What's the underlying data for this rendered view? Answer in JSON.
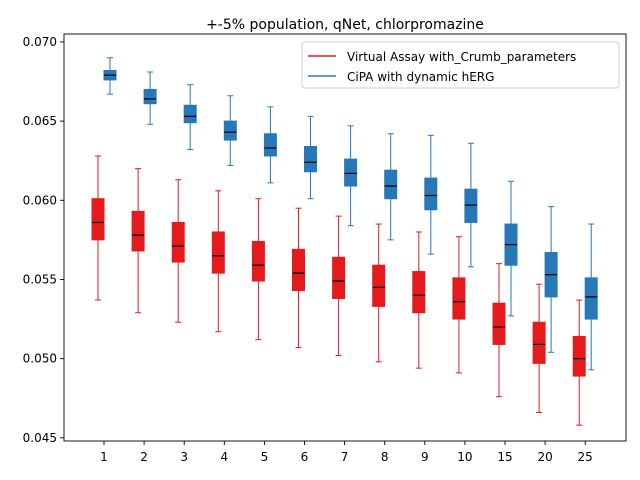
{
  "chart_data": {
    "type": "box",
    "title": "+-5% population, qNet, chlorpromazine",
    "xlabel": "",
    "ylabel": "",
    "categories": [
      "1",
      "2",
      "3",
      "4",
      "5",
      "6",
      "7",
      "8",
      "9",
      "10",
      "15",
      "20",
      "25"
    ],
    "ylim": [
      0.0448,
      0.0705
    ],
    "yticks": [
      0.045,
      0.05,
      0.055,
      0.06,
      0.065,
      0.07
    ],
    "ytick_labels": [
      "0.045",
      "0.050",
      "0.055",
      "0.060",
      "0.065",
      "0.070"
    ],
    "grid": false,
    "legend_position": "top-right",
    "series": [
      {
        "name": "Virtual Assay with_Crumb_parameters",
        "color": "#e41a1c",
        "boxes": [
          {
            "whislo": 0.0537,
            "q1": 0.0575,
            "med": 0.0586,
            "q3": 0.0601,
            "whishi": 0.0628
          },
          {
            "whislo": 0.0529,
            "q1": 0.0568,
            "med": 0.0578,
            "q3": 0.0593,
            "whishi": 0.062
          },
          {
            "whislo": 0.0523,
            "q1": 0.0561,
            "med": 0.0571,
            "q3": 0.0586,
            "whishi": 0.0613
          },
          {
            "whislo": 0.0517,
            "q1": 0.0554,
            "med": 0.0565,
            "q3": 0.058,
            "whishi": 0.0606
          },
          {
            "whislo": 0.0512,
            "q1": 0.0549,
            "med": 0.0559,
            "q3": 0.0574,
            "whishi": 0.0601
          },
          {
            "whislo": 0.0507,
            "q1": 0.0543,
            "med": 0.0554,
            "q3": 0.0569,
            "whishi": 0.0595
          },
          {
            "whislo": 0.0502,
            "q1": 0.0538,
            "med": 0.0549,
            "q3": 0.0564,
            "whishi": 0.059
          },
          {
            "whislo": 0.0498,
            "q1": 0.0533,
            "med": 0.0545,
            "q3": 0.0559,
            "whishi": 0.0585
          },
          {
            "whislo": 0.0494,
            "q1": 0.0529,
            "med": 0.054,
            "q3": 0.0555,
            "whishi": 0.058
          },
          {
            "whislo": 0.0491,
            "q1": 0.0525,
            "med": 0.0536,
            "q3": 0.0551,
            "whishi": 0.0577
          },
          {
            "whislo": 0.0476,
            "q1": 0.0509,
            "med": 0.052,
            "q3": 0.0535,
            "whishi": 0.056
          },
          {
            "whislo": 0.0466,
            "q1": 0.0497,
            "med": 0.0509,
            "q3": 0.0523,
            "whishi": 0.0547
          },
          {
            "whislo": 0.0458,
            "q1": 0.0489,
            "med": 0.05,
            "q3": 0.0514,
            "whishi": 0.0537
          }
        ]
      },
      {
        "name": "CiPA with dynamic hERG",
        "color": "#2678b6",
        "boxes": [
          {
            "whislo": 0.0667,
            "q1": 0.0676,
            "med": 0.0679,
            "q3": 0.0682,
            "whishi": 0.069
          },
          {
            "whislo": 0.0648,
            "q1": 0.0661,
            "med": 0.0664,
            "q3": 0.067,
            "whishi": 0.0681
          },
          {
            "whislo": 0.0632,
            "q1": 0.0649,
            "med": 0.0653,
            "q3": 0.066,
            "whishi": 0.0673
          },
          {
            "whislo": 0.0622,
            "q1": 0.0638,
            "med": 0.0643,
            "q3": 0.065,
            "whishi": 0.0666
          },
          {
            "whislo": 0.0611,
            "q1": 0.0628,
            "med": 0.0633,
            "q3": 0.0642,
            "whishi": 0.0659
          },
          {
            "whislo": 0.0601,
            "q1": 0.0618,
            "med": 0.0624,
            "q3": 0.0634,
            "whishi": 0.0653
          },
          {
            "whislo": 0.0584,
            "q1": 0.0609,
            "med": 0.0617,
            "q3": 0.0626,
            "whishi": 0.0647
          },
          {
            "whislo": 0.0575,
            "q1": 0.0601,
            "med": 0.0609,
            "q3": 0.0619,
            "whishi": 0.0642
          },
          {
            "whislo": 0.0566,
            "q1": 0.0594,
            "med": 0.0603,
            "q3": 0.0614,
            "whishi": 0.0641
          },
          {
            "whislo": 0.0558,
            "q1": 0.0586,
            "med": 0.0597,
            "q3": 0.0607,
            "whishi": 0.0636
          },
          {
            "whislo": 0.0527,
            "q1": 0.0559,
            "med": 0.0572,
            "q3": 0.0585,
            "whishi": 0.0612
          },
          {
            "whislo": 0.0504,
            "q1": 0.0539,
            "med": 0.0553,
            "q3": 0.0567,
            "whishi": 0.0596
          },
          {
            "whislo": 0.0493,
            "q1": 0.0525,
            "med": 0.0539,
            "q3": 0.0551,
            "whishi": 0.0585
          }
        ]
      }
    ],
    "median_color": "#000000"
  }
}
